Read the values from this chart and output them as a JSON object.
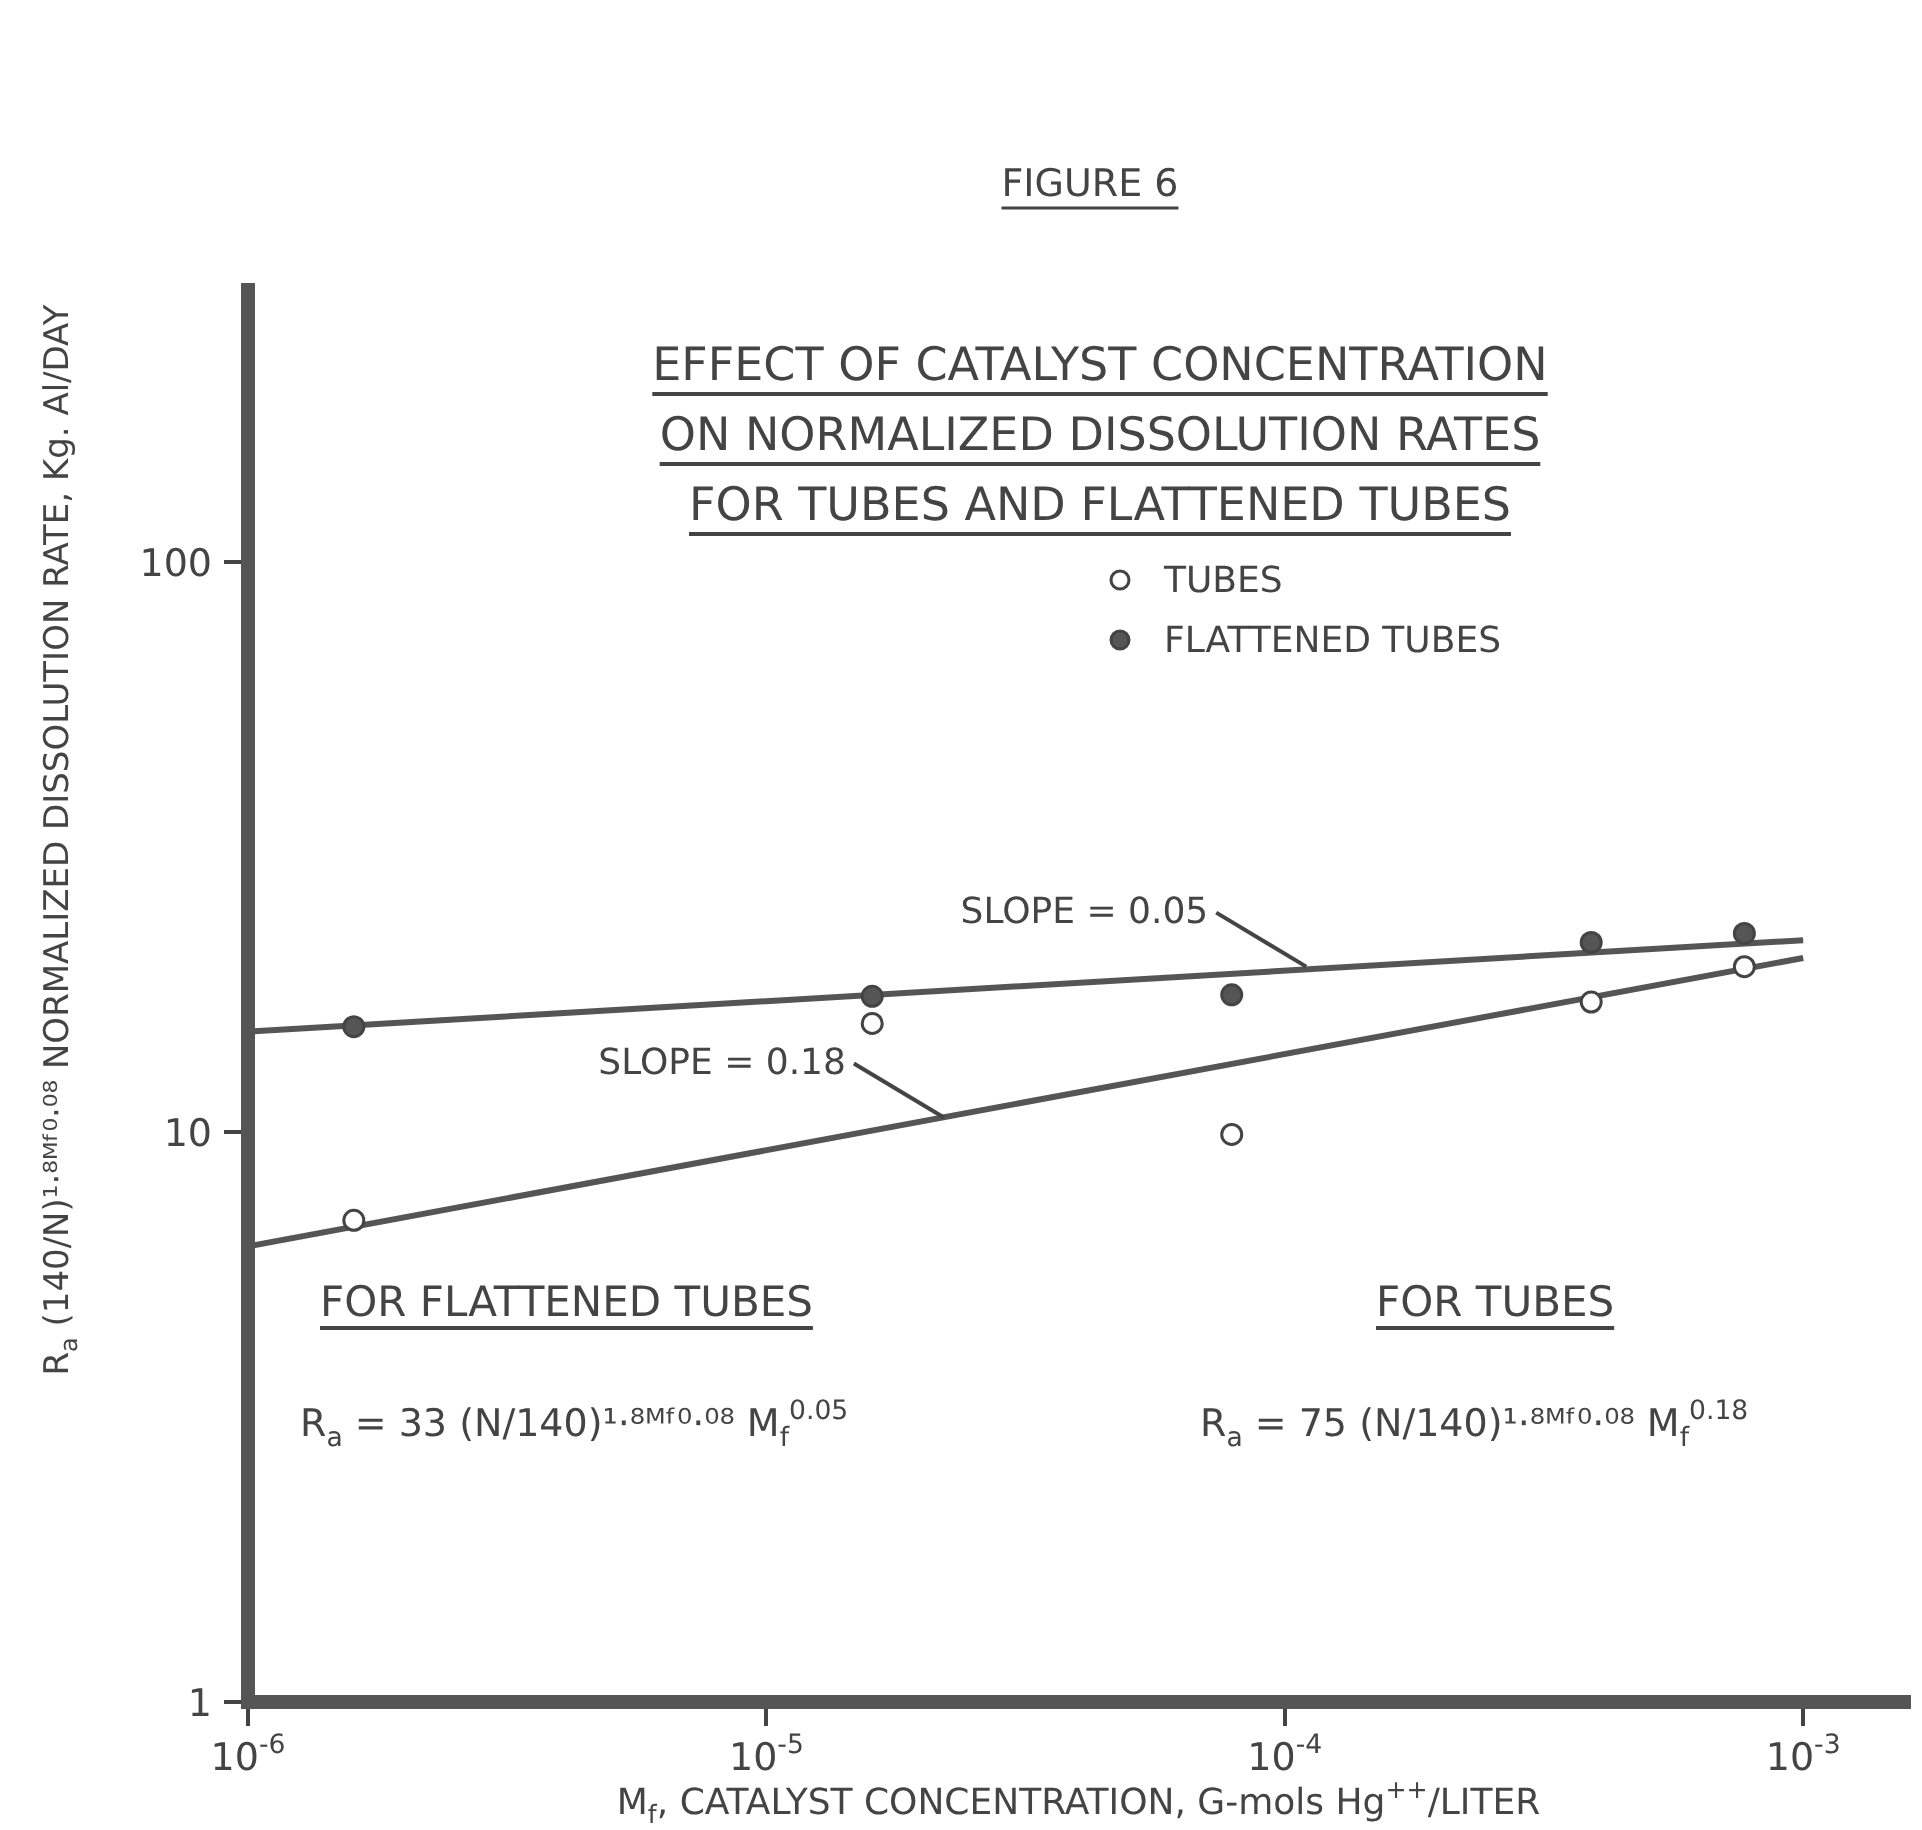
{
  "chart_data": {
    "type": "scatter",
    "title": "FIGURE 6",
    "subtitle": "EFFECT OF CATALYST CONCENTRATION\nON NORMALIZED DISSOLUTION RATES\nFOR TUBES AND FLATTENED TUBES",
    "xlabel": "M$_{f}$, CATALYST CONCENTRATION, G-mols Hg$^{++}$/LITER",
    "ylabel": "R$_{a}$ (140/N)¹·⁸ᴹᶠ⁰·⁰⁸ NORMALIZED DISSOLUTION RATE, Kg. Al/DAY",
    "log": "xy",
    "xlim": [
      1e-06,
      0.0016
    ],
    "ylim": [
      1,
      300
    ],
    "xticks": [
      {
        "value": 1e-06,
        "label": "10$^{-6}$"
      },
      {
        "value": 1e-05,
        "label": "10$^{-5}$"
      },
      {
        "value": 0.0001,
        "label": "10$^{-4}$"
      },
      {
        "value": 0.001,
        "label": "10$^{-3}$"
      }
    ],
    "yticks": [
      1,
      10,
      100
    ],
    "grid": false,
    "legend": "top",
    "marker": "circle",
    "series": [
      {
        "name": "TUBES",
        "color": "#ffffff",
        "x": [
          1.6e-06,
          1.6e-05,
          7.9e-05,
          0.00039,
          0.00077
        ],
        "values": [
          7.0,
          15.5,
          9.9,
          16.9,
          19.5
        ]
      },
      {
        "name": "FLATTENED TUBES",
        "color": "#555555",
        "x": [
          1.6e-06,
          1.6e-05,
          7.9e-05,
          0.00039,
          0.00077
        ],
        "values": [
          15.3,
          17.3,
          17.4,
          21.5,
          22.3
        ]
      },
      {
        "type": "line",
        "color": "#555555",
        "line_style": "solid",
        "marker": "none",
        "x": [
          1e-06,
          0.001
        ],
        "values": [
          15.0,
          21.7
        ]
      },
      {
        "type": "line",
        "color": "#555555",
        "line_style": "solid",
        "marker": "none",
        "x": [
          1e-06,
          0.001
        ],
        "values": [
          6.3,
          20.2
        ]
      }
    ],
    "annotations": [
      {
        "text": "SLOPE = 0.05",
        "x": 0.00011,
        "y": 19.5
      },
      {
        "text": "SLOPE = 0.18",
        "x": 2.2e-05,
        "y": 10.6
      },
      "FOR FLATTENED TUBES",
      "R$_{a}$ = 33 (N/140)¹·⁸ᴹᶠ⁰·⁰⁸ M$_{f}$$^{0.05}$",
      "FOR TUBES",
      "R$_{a}$ = 75 (N/140)¹·⁸ᴹᶠ⁰·⁰⁸ M$_{f}$$^{0.18}$"
    ]
  }
}
